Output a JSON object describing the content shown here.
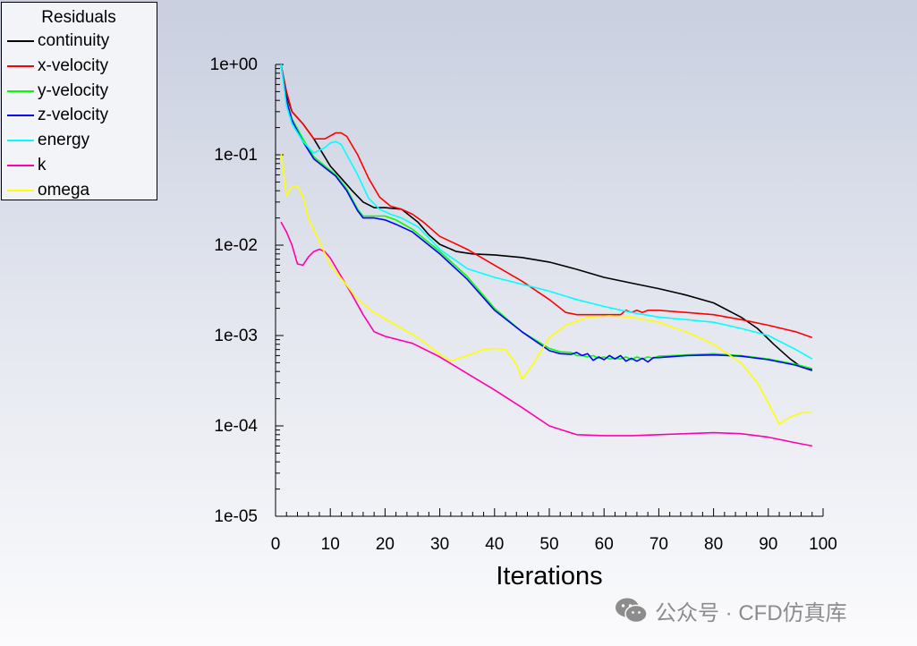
{
  "chart_data": {
    "type": "line",
    "title": "",
    "xlabel": "Iterations",
    "ylabel": "",
    "xlim": [
      0,
      100
    ],
    "ylim": [
      1e-05,
      1
    ],
    "yscale": "log",
    "x_ticks": [
      0,
      10,
      20,
      30,
      40,
      50,
      60,
      70,
      80,
      90,
      100
    ],
    "x_tick_labels": [
      "0",
      "10",
      "20",
      "30",
      "40",
      "50",
      "60",
      "70",
      "80",
      "90",
      "100"
    ],
    "y_ticks": [
      1e-05,
      0.0001,
      0.001,
      0.01,
      0.1,
      1
    ],
    "y_tick_labels": [
      "1e-05",
      "1e-04",
      "1e-03",
      "1e-02",
      "1e-01",
      "1e+00"
    ],
    "grid": false,
    "legend": {
      "title": "Residuals",
      "placement": "top-left"
    },
    "series": [
      {
        "name": "continuity",
        "color": "#000000",
        "x": [
          1,
          2,
          3,
          5,
          7,
          10,
          12,
          14,
          16,
          18,
          20,
          23,
          26,
          28,
          30,
          33,
          36,
          40,
          45,
          50,
          55,
          60,
          65,
          70,
          75,
          80,
          85,
          88,
          91,
          94,
          96,
          98
        ],
        "y": [
          1.0,
          0.45,
          0.3,
          0.22,
          0.15,
          0.075,
          0.055,
          0.04,
          0.03,
          0.026,
          0.026,
          0.025,
          0.018,
          0.013,
          0.0102,
          0.0085,
          0.008,
          0.0078,
          0.0073,
          0.0065,
          0.0054,
          0.0044,
          0.0038,
          0.0033,
          0.0028,
          0.0023,
          0.0016,
          0.0012,
          0.0008,
          0.00055,
          0.00045,
          0.00042
        ]
      },
      {
        "name": "x-velocity",
        "color": "#ff0000",
        "x": [
          1,
          2,
          3,
          5,
          7,
          9,
          11,
          12,
          13,
          15,
          17,
          19,
          21,
          23,
          25,
          27,
          30,
          35,
          40,
          45,
          50,
          53,
          55,
          58,
          61,
          63,
          64,
          65,
          66,
          67,
          68,
          69,
          70,
          75,
          80,
          85,
          90,
          95,
          98
        ],
        "y": [
          1.0,
          0.5,
          0.3,
          0.22,
          0.15,
          0.15,
          0.175,
          0.175,
          0.16,
          0.1,
          0.055,
          0.034,
          0.027,
          0.025,
          0.022,
          0.018,
          0.0125,
          0.009,
          0.006,
          0.004,
          0.0025,
          0.0018,
          0.0017,
          0.0017,
          0.0017,
          0.0017,
          0.0019,
          0.0018,
          0.0019,
          0.0018,
          0.0019,
          0.0019,
          0.0019,
          0.0018,
          0.0017,
          0.0015,
          0.0013,
          0.0011,
          0.00095
        ]
      },
      {
        "name": "y-velocity",
        "color": "#00ff00",
        "x": [
          1,
          2,
          3,
          5,
          7,
          9,
          11,
          13,
          15,
          16,
          18,
          20,
          22,
          25,
          30,
          35,
          40,
          45,
          50,
          52,
          54,
          55,
          56,
          57,
          58,
          59,
          60,
          61,
          62,
          63,
          64,
          65,
          66,
          67,
          68,
          69,
          70,
          75,
          80,
          85,
          90,
          95,
          98
        ],
        "y": [
          1.0,
          0.4,
          0.25,
          0.15,
          0.095,
          0.075,
          0.06,
          0.042,
          0.025,
          0.021,
          0.021,
          0.021,
          0.019,
          0.015,
          0.0085,
          0.0045,
          0.002,
          0.0011,
          0.00072,
          0.00066,
          0.00065,
          0.0006,
          0.0006,
          0.00058,
          0.0006,
          0.00056,
          0.00058,
          0.00055,
          0.00056,
          0.00055,
          0.00058,
          0.00054,
          0.00058,
          0.00055,
          0.00058,
          0.00056,
          0.00059,
          0.00061,
          0.00063,
          0.0006,
          0.00055,
          0.00048,
          0.00043
        ]
      },
      {
        "name": "z-velocity",
        "color": "#0000ff",
        "x": [
          1,
          2,
          3,
          5,
          7,
          9,
          11,
          13,
          15,
          16,
          18,
          20,
          22,
          25,
          30,
          35,
          40,
          45,
          50,
          52,
          54,
          55,
          56,
          57,
          58,
          59,
          60,
          61,
          62,
          63,
          64,
          65,
          66,
          67,
          68,
          69,
          70,
          75,
          80,
          85,
          90,
          95,
          98
        ],
        "y": [
          1.0,
          0.4,
          0.24,
          0.14,
          0.09,
          0.072,
          0.058,
          0.04,
          0.024,
          0.02,
          0.02,
          0.019,
          0.017,
          0.014,
          0.008,
          0.0042,
          0.0019,
          0.0011,
          0.00068,
          0.00063,
          0.00062,
          0.00065,
          0.0006,
          0.00063,
          0.00053,
          0.00058,
          0.00054,
          0.0006,
          0.00055,
          0.0006,
          0.00052,
          0.00056,
          0.00052,
          0.00056,
          0.00051,
          0.00057,
          0.00057,
          0.0006,
          0.00061,
          0.00059,
          0.00054,
          0.00047,
          0.00041
        ]
      },
      {
        "name": "energy",
        "color": "#00ffff",
        "x": [
          1,
          2,
          3,
          5,
          7,
          9,
          10,
          11,
          12,
          13,
          15,
          17,
          19,
          21,
          23,
          26,
          30,
          35,
          40,
          45,
          50,
          55,
          60,
          65,
          70,
          75,
          80,
          85,
          90,
          95,
          98
        ],
        "y": [
          1.0,
          0.35,
          0.22,
          0.14,
          0.105,
          0.12,
          0.135,
          0.14,
          0.13,
          0.1,
          0.06,
          0.033,
          0.025,
          0.022,
          0.02,
          0.016,
          0.009,
          0.0055,
          0.0044,
          0.0037,
          0.0031,
          0.0025,
          0.0021,
          0.0018,
          0.0016,
          0.0015,
          0.0014,
          0.0012,
          0.001,
          0.0007,
          0.00055
        ]
      },
      {
        "name": "k",
        "color": "#ff00aa",
        "x": [
          1,
          2,
          3,
          4,
          5,
          6,
          7,
          8,
          9,
          10,
          12,
          14,
          16,
          18,
          20,
          25,
          30,
          35,
          40,
          45,
          50,
          55,
          60,
          65,
          70,
          75,
          80,
          85,
          90,
          95,
          98
        ],
        "y": [
          0.018,
          0.014,
          0.01,
          0.0062,
          0.006,
          0.0074,
          0.0085,
          0.009,
          0.0085,
          0.0072,
          0.0045,
          0.0028,
          0.0017,
          0.0011,
          0.00098,
          0.00082,
          0.00058,
          0.00038,
          0.00025,
          0.00016,
          0.0001,
          8e-05,
          7.8e-05,
          7.8e-05,
          8e-05,
          8.2e-05,
          8.4e-05,
          8.2e-05,
          7.5e-05,
          6.5e-05,
          6e-05
        ]
      },
      {
        "name": "omega",
        "color": "#ffff00",
        "x": [
          1,
          2,
          3,
          4,
          5,
          6,
          8,
          10,
          13,
          15,
          18,
          22,
          26,
          30,
          32,
          35,
          38,
          40,
          42,
          44,
          45,
          47,
          50,
          53,
          57,
          61,
          65,
          70,
          75,
          80,
          85,
          88,
          90,
          92,
          94,
          96,
          98
        ],
        "y": [
          0.105,
          0.035,
          0.045,
          0.045,
          0.035,
          0.02,
          0.011,
          0.006,
          0.0036,
          0.0025,
          0.0018,
          0.0013,
          0.00095,
          0.00062,
          0.00052,
          0.0006,
          0.0007,
          0.00072,
          0.0007,
          0.00048,
          0.00033,
          0.00048,
          0.00095,
          0.0013,
          0.0016,
          0.00165,
          0.0016,
          0.0014,
          0.0011,
          0.0008,
          0.0005,
          0.0003,
          0.00018,
          0.000105,
          0.000125,
          0.00014,
          0.00014
        ]
      }
    ]
  },
  "watermark": {
    "text": "公众号 · CFD仿真库",
    "icon": "wechat-icon"
  }
}
